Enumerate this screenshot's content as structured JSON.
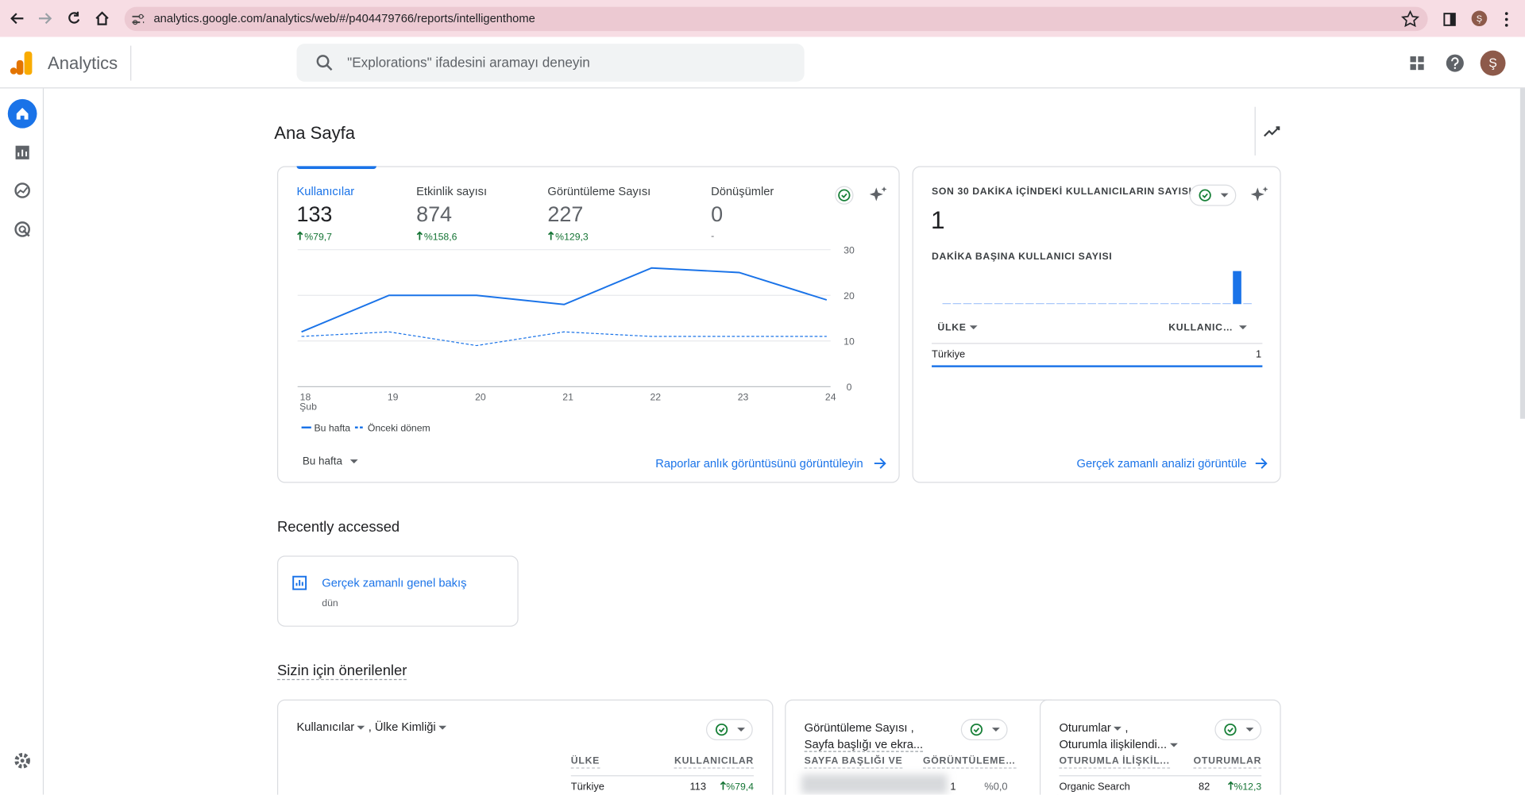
{
  "browser": {
    "url": "analytics.google.com/analytics/web/#/p404479766/reports/intelligenthome",
    "avatar": "Ş"
  },
  "header": {
    "product": "Analytics",
    "search_placeholder": "\"Explorations\" ifadesini aramayı deneyin",
    "avatar": "Ş"
  },
  "page": {
    "title": "Ana Sayfa"
  },
  "overview": {
    "metrics": [
      {
        "label": "Kullanıcılar",
        "value": "133",
        "change": "%79,7"
      },
      {
        "label": "Etkinlik sayısı",
        "value": "874",
        "change": "%158,6"
      },
      {
        "label": "Görüntüleme Sayısı",
        "value": "227",
        "change": "%129,3"
      },
      {
        "label": "Dönüşümler",
        "value": "0",
        "change": "-"
      }
    ],
    "chart": {
      "type": "line",
      "categories": [
        "18",
        "19",
        "20",
        "21",
        "22",
        "23",
        "24"
      ],
      "month_label": "Şub",
      "series": [
        {
          "name": "Bu hafta",
          "color": "#1a73e8",
          "style": "solid",
          "values": [
            12,
            20,
            20,
            18,
            26,
            25,
            19
          ]
        },
        {
          "name": "Önceki dönem",
          "color": "#1a73e8",
          "style": "dashed",
          "values": [
            11,
            12,
            9,
            12,
            11,
            11,
            11
          ]
        }
      ],
      "ylim": [
        0,
        30
      ],
      "yticks": [
        0,
        10,
        20,
        30
      ],
      "grid": true
    },
    "period": "Bu hafta",
    "link": "Raporlar anlık görüntüsünü görüntüleyin"
  },
  "realtime": {
    "title": "SON 30 DAKİKA İÇİNDEKİ KULLANICILARIN SAYISI",
    "value": "1",
    "subtitle": "DAKİKA BAŞINA KULLANICI SAYISI",
    "minute_chart": {
      "type": "bar",
      "color": "#1a73e8",
      "values": [
        0,
        0,
        0,
        0,
        0,
        0,
        0,
        0,
        0,
        0,
        0,
        0,
        0,
        0,
        0,
        0,
        0,
        0,
        0,
        0,
        0,
        0,
        0,
        0,
        0,
        0,
        0,
        0,
        1,
        0
      ]
    },
    "table": {
      "headers": [
        "ÜLKE",
        "KULLANIC…"
      ],
      "rows": [
        [
          "Türkiye",
          "1"
        ]
      ]
    },
    "link": "Gerçek zamanlı analizi görüntüle"
  },
  "recent": {
    "title": "Recently accessed",
    "items": [
      {
        "name": "Gerçek zamanlı genel bakış",
        "when": "dün"
      }
    ]
  },
  "suggested": {
    "title": "Sizin için önerilenler",
    "cards": [
      {
        "title": [
          "Kullanıcılar",
          ", Ülke Kimliği"
        ],
        "headers": [
          "ÜLKE",
          "KULLANICILAR"
        ],
        "row": [
          "Türkiye",
          "113",
          "%79,4"
        ]
      },
      {
        "title": [
          "Görüntüleme Sayısı ,",
          "Sayfa başlığı ve ekra..."
        ],
        "headers": [
          "SAYFA BAŞLIĞI VE",
          "GÖRÜNTÜLEME…"
        ],
        "row": [
          "1",
          "%0,0"
        ]
      },
      {
        "title": [
          "Oturumlar",
          ",",
          "Oturumla ilişkilendi..."
        ],
        "headers": [
          "OTURUMLA İLİŞKİL...",
          "OTURUMLAR"
        ],
        "row": [
          "Organic Search",
          "82",
          "%12,3"
        ]
      }
    ]
  }
}
